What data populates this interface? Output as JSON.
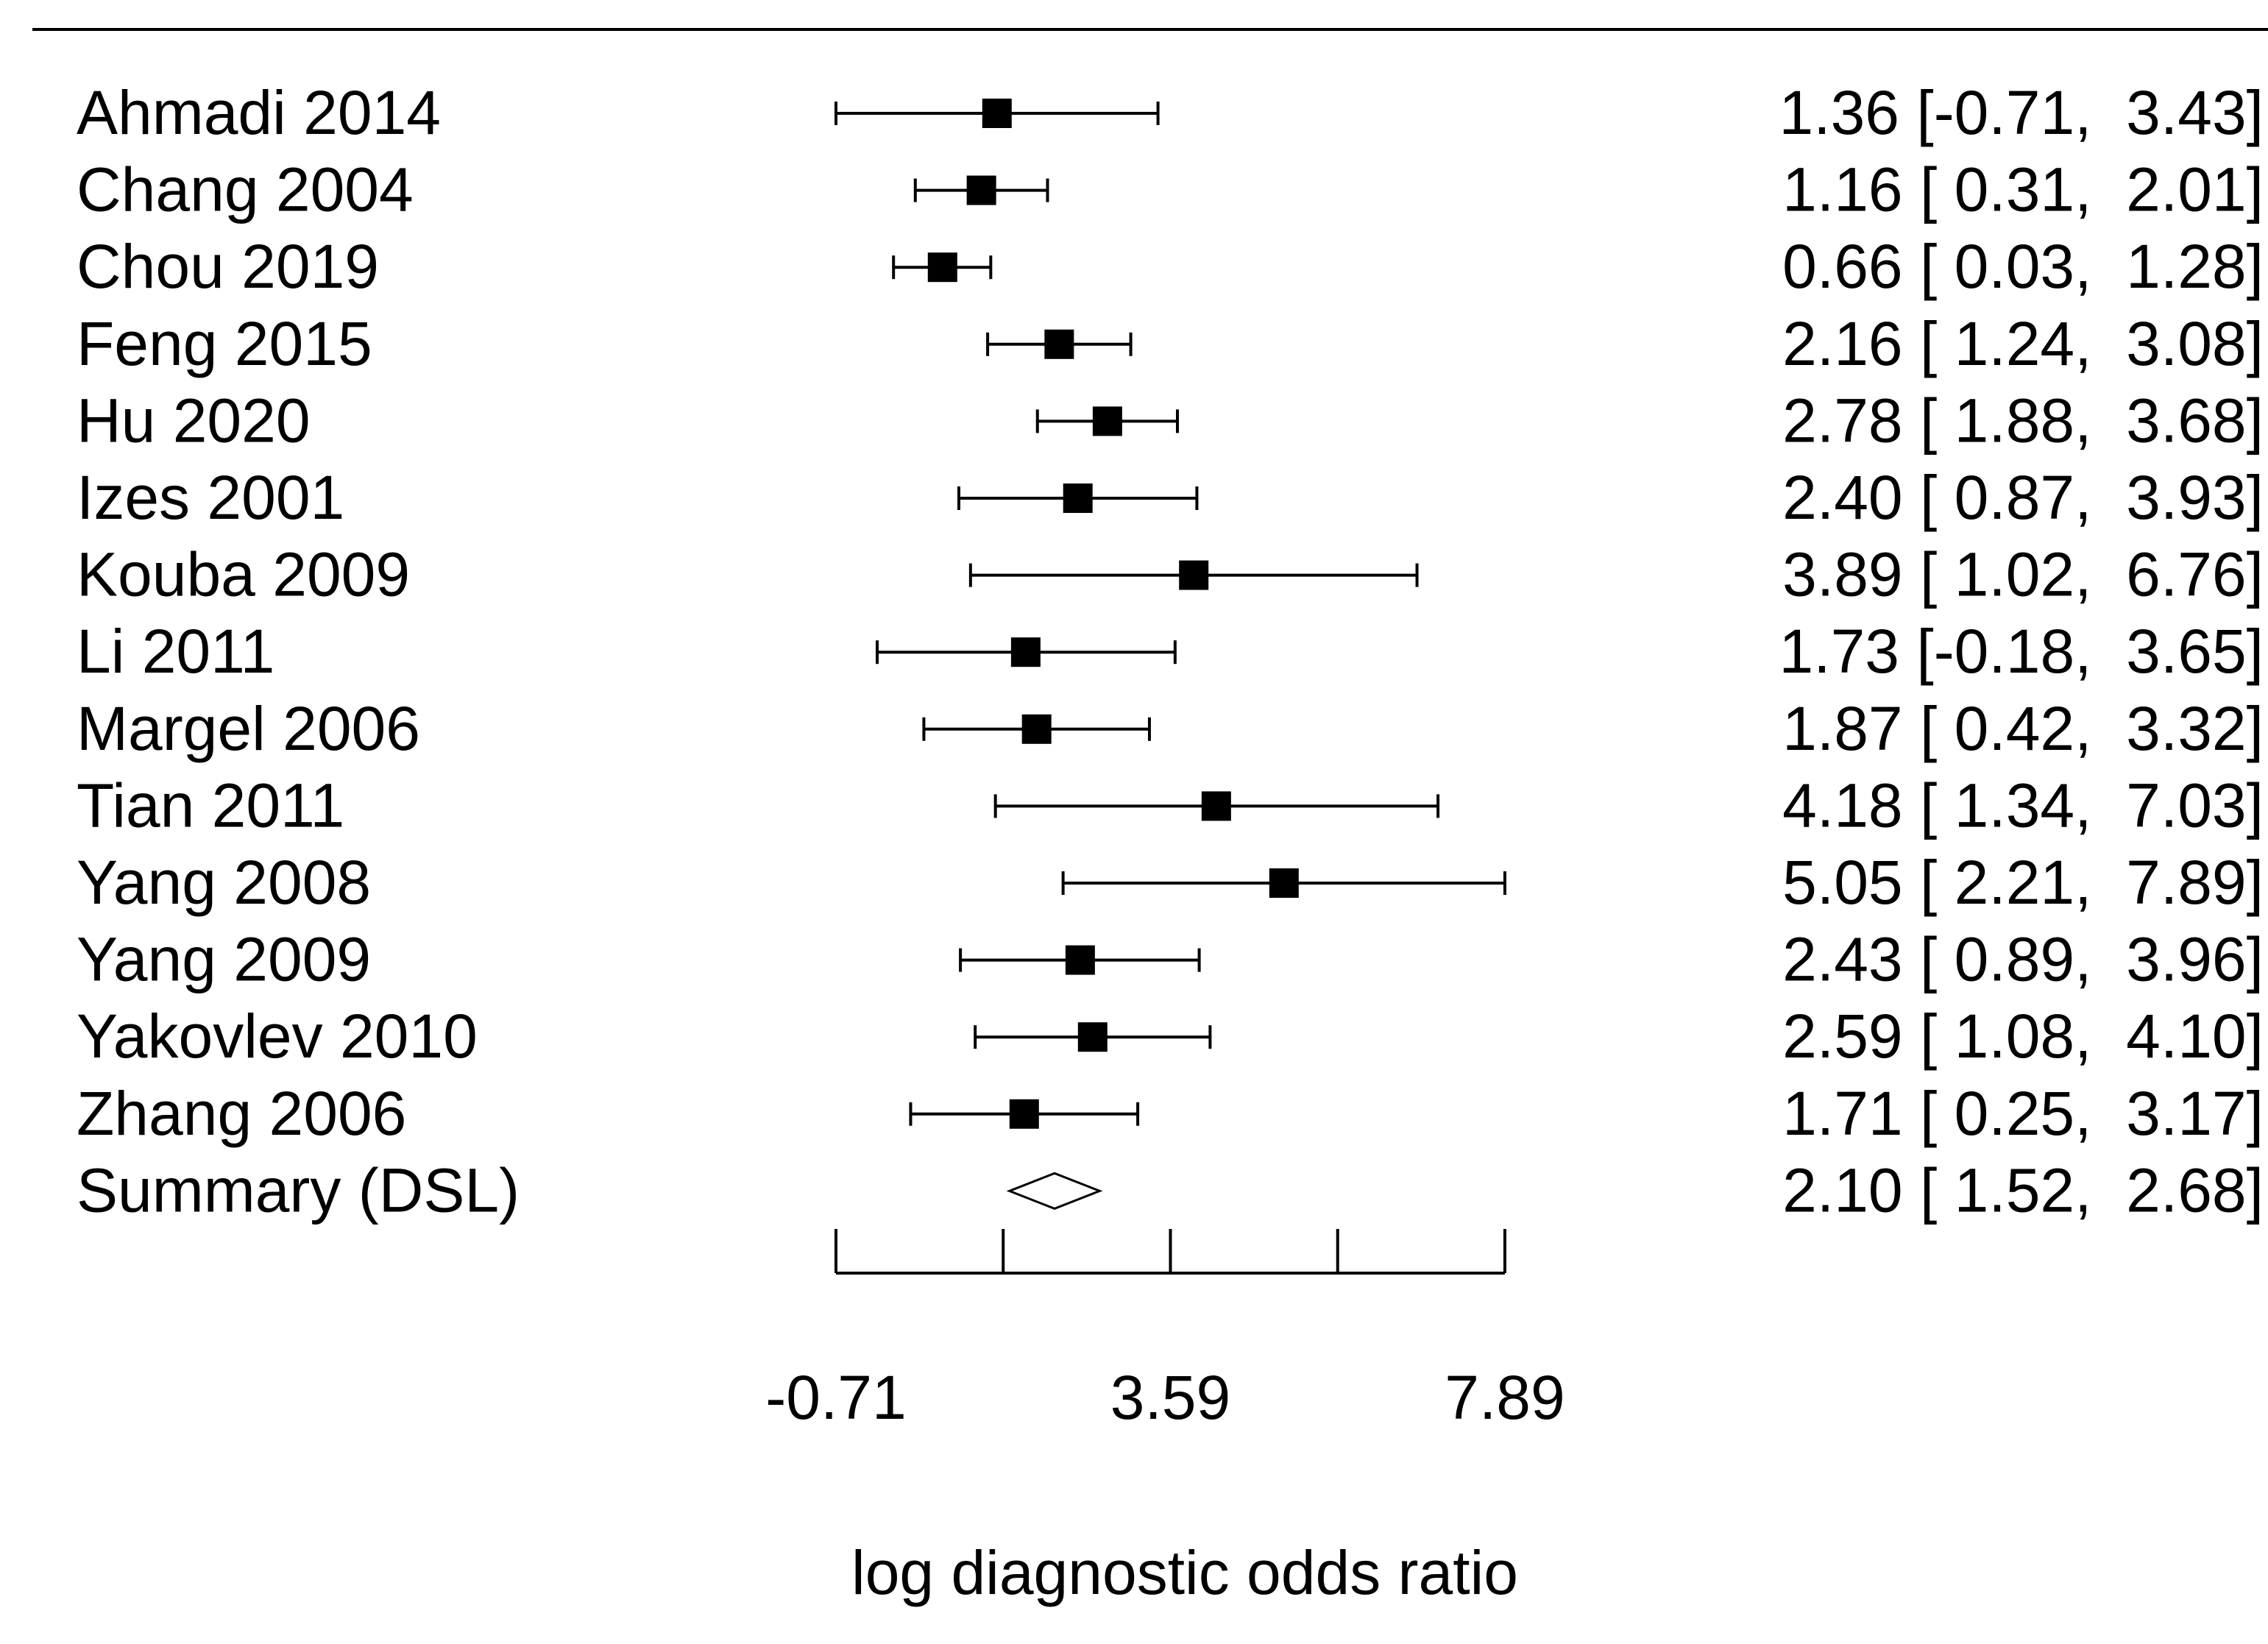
{
  "chart_data": {
    "type": "forest",
    "xlabel": "log diagnostic odds ratio",
    "xlim": [
      -0.71,
      7.89
    ],
    "x_ticks": [
      -0.71,
      1.44,
      3.59,
      5.74,
      7.89
    ],
    "x_tick_labels": [
      "-0.71",
      "3.59",
      "7.89"
    ],
    "studies": [
      {
        "label": "Ahmadi 2014",
        "estimate": 1.36,
        "lower": -0.71,
        "upper": 3.43,
        "text": "1.36 [-0.71,  3.43]"
      },
      {
        "label": "Chang 2004",
        "estimate": 1.16,
        "lower": 0.31,
        "upper": 2.01,
        "text": "1.16 [ 0.31,  2.01]"
      },
      {
        "label": "Chou 2019",
        "estimate": 0.66,
        "lower": 0.03,
        "upper": 1.28,
        "text": "0.66 [ 0.03,  1.28]"
      },
      {
        "label": "Feng 2015",
        "estimate": 2.16,
        "lower": 1.24,
        "upper": 3.08,
        "text": "2.16 [ 1.24,  3.08]"
      },
      {
        "label": "Hu 2020",
        "estimate": 2.78,
        "lower": 1.88,
        "upper": 3.68,
        "text": "2.78 [ 1.88,  3.68]"
      },
      {
        "label": "Izes 2001",
        "estimate": 2.4,
        "lower": 0.87,
        "upper": 3.93,
        "text": "2.40 [ 0.87,  3.93]"
      },
      {
        "label": "Kouba 2009",
        "estimate": 3.89,
        "lower": 1.02,
        "upper": 6.76,
        "text": "3.89 [ 1.02,  6.76]"
      },
      {
        "label": "Li 2011",
        "estimate": 1.73,
        "lower": -0.18,
        "upper": 3.65,
        "text": "1.73 [-0.18,  3.65]"
      },
      {
        "label": "Margel 2006",
        "estimate": 1.87,
        "lower": 0.42,
        "upper": 3.32,
        "text": "1.87 [ 0.42,  3.32]"
      },
      {
        "label": "Tian 2011",
        "estimate": 4.18,
        "lower": 1.34,
        "upper": 7.03,
        "text": "4.18 [ 1.34,  7.03]"
      },
      {
        "label": "Yang 2008",
        "estimate": 5.05,
        "lower": 2.21,
        "upper": 7.89,
        "text": "5.05 [ 2.21,  7.89]"
      },
      {
        "label": "Yang 2009",
        "estimate": 2.43,
        "lower": 0.89,
        "upper": 3.96,
        "text": "2.43 [ 0.89,  3.96]"
      },
      {
        "label": "Yakovlev 2010",
        "estimate": 2.59,
        "lower": 1.08,
        "upper": 4.1,
        "text": "2.59 [ 1.08,  4.10]"
      },
      {
        "label": "Zhang 2006",
        "estimate": 1.71,
        "lower": 0.25,
        "upper": 3.17,
        "text": "1.71 [ 0.25,  3.17]"
      }
    ],
    "summary": {
      "label": "Summary (DSL)",
      "estimate": 2.1,
      "lower": 1.52,
      "upper": 2.68,
      "text": "2.10 [ 1.52,  2.68]"
    },
    "colors": {
      "ink": "#000000",
      "background": "#ffffff"
    }
  }
}
